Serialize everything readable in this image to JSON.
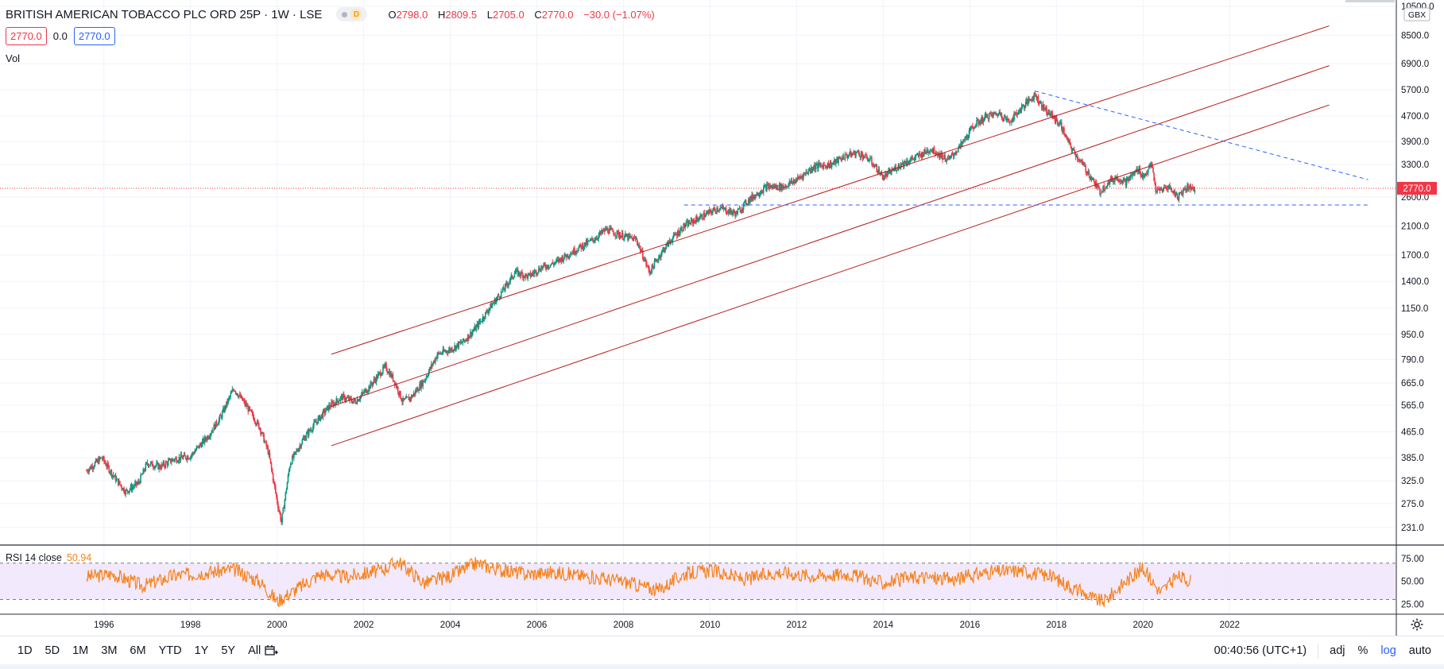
{
  "header": {
    "title": "BRITISH AMERICAN TOBACCO PLC ORD 25P · 1W · LSE",
    "badge_d": "D",
    "ohlc": {
      "o_label": "O",
      "o": "2798.0",
      "h_label": "H",
      "h": "2809.5",
      "l_label": "L",
      "l": "2705.0",
      "c_label": "C",
      "c": "2770.0",
      "change": "−30.0 (−1.07%)"
    },
    "bid": "2770.0",
    "spread": "0.0",
    "ask": "2770.0",
    "vol_label": "Vol"
  },
  "rsi": {
    "label": "RSI 14 close",
    "value": "50.94"
  },
  "toolbar": {
    "ranges": [
      "1D",
      "5D",
      "1M",
      "3M",
      "6M",
      "YTD",
      "1Y",
      "5Y",
      "All"
    ],
    "time": "00:40:56 (UTC+1)",
    "adj": "adj",
    "pct": "%",
    "log": "log",
    "auto": "auto"
  },
  "colors": {
    "down": "#f23645",
    "up": "#089981",
    "channel": "#b71c1c",
    "dashed": "#2962ff",
    "rsi": "#f7821b",
    "rsi_band": "#ede1fb",
    "last": "#f23645"
  },
  "chart_data": [
    {
      "type": "candlestick",
      "scale": "log",
      "currency": "GBX",
      "current_price": 2770.0,
      "current_price_label": "2770.0",
      "y_ticks": [
        231,
        275,
        325,
        385,
        465,
        565,
        665,
        790,
        950,
        1150,
        1400,
        1700,
        2100,
        2600,
        3300,
        3900,
        4700,
        5700,
        6900,
        8500,
        10500
      ],
      "y_tick_labels": [
        "231.0",
        "275.0",
        "325.0",
        "385.0",
        "465.0",
        "565.0",
        "665.0",
        "790.0",
        "950.0",
        "1150.0",
        "1400.0",
        "1700.0",
        "2100.0",
        "2600.0",
        "3300.0",
        "3900.0",
        "4700.0",
        "5700.0",
        "6900.0",
        "8500.0",
        "10500.0"
      ],
      "x_ticks": [
        "1996",
        "1998",
        "2000",
        "2002",
        "2004",
        "2006",
        "2008",
        "2010",
        "2012",
        "2014",
        "2016",
        "2018",
        "2020",
        "2022"
      ],
      "x_tick_values": [
        1996,
        1998,
        2000,
        2002,
        2004,
        2006,
        2008,
        2010,
        2012,
        2014,
        2016,
        2018,
        2020,
        2022
      ],
      "x_range": [
        1993.6,
        2025.85
      ],
      "y_range": [
        203,
        11000
      ],
      "series": [
        {
          "x": [
            1995.6,
            1995.95,
            1996.2,
            1996.5,
            1996.8,
            1997.0,
            1997.3,
            1997.6,
            1998.0,
            1998.4,
            1998.7,
            1999.0,
            1999.3,
            1999.6,
            1999.8,
            2000.0,
            2000.1,
            2000.3,
            2000.6,
            2000.9,
            2001.2,
            2001.5,
            2001.8,
            2002.1,
            2002.5,
            2002.7,
            2002.9,
            2003.1,
            2003.4,
            2003.7,
            2004.0,
            2004.3,
            2004.6,
            2004.9,
            2005.2,
            2005.5,
            2005.8,
            2006.1,
            2006.4,
            2006.7,
            2007.0,
            2007.3,
            2007.6,
            2008.0,
            2008.3,
            2008.6,
            2008.9,
            2009.1,
            2009.4,
            2009.8,
            2010.2,
            2010.6,
            2010.9,
            2011.3,
            2011.7,
            2012.0,
            2012.4,
            2012.8,
            2013.1,
            2013.4,
            2013.7,
            2014.0,
            2014.4,
            2014.8,
            2015.1,
            2015.5,
            2015.8,
            2016.1,
            2016.4,
            2016.7,
            2016.9,
            2017.2,
            2017.5,
            2017.7,
            2017.9,
            2018.1,
            2018.3,
            2018.6,
            2018.8,
            2019.0,
            2019.2,
            2019.4,
            2019.6,
            2019.9,
            2020.0,
            2020.2,
            2020.3,
            2020.6,
            2020.8,
            2021.0,
            2021.2
          ],
          "values": [
            350,
            385,
            340,
            300,
            320,
            370,
            360,
            380,
            390,
            450,
            520,
            640,
            560,
            480,
            400,
            280,
            240,
            370,
            440,
            500,
            560,
            600,
            580,
            640,
            750,
            680,
            580,
            600,
            680,
            820,
            850,
            900,
            1000,
            1150,
            1300,
            1500,
            1450,
            1550,
            1600,
            1700,
            1800,
            1900,
            2050,
            1950,
            1900,
            1500,
            1750,
            1900,
            2100,
            2250,
            2400,
            2300,
            2550,
            2800,
            2800,
            2950,
            3250,
            3300,
            3500,
            3600,
            3400,
            3000,
            3300,
            3500,
            3700,
            3400,
            3800,
            4400,
            4700,
            4800,
            4500,
            5000,
            5500,
            5000,
            4700,
            4400,
            3800,
            3300,
            3000,
            2700,
            2900,
            3000,
            2900,
            3200,
            3000,
            3300,
            2700,
            2800,
            2600,
            2800,
            2770
          ]
        }
      ],
      "channel_lines": [
        {
          "from": [
            2001.25,
            821
          ],
          "to": [
            2024.3,
            9100
          ]
        },
        {
          "from": [
            2001.25,
            560
          ],
          "to": [
            2024.3,
            6800
          ]
        },
        {
          "from": [
            2001.25,
            420
          ],
          "to": [
            2024.3,
            5100
          ]
        }
      ],
      "support_line": {
        "from": [
          2009.4,
          2450
        ],
        "to": [
          2025.2,
          2450
        ],
        "style": "dashed"
      },
      "resistance_line": {
        "from": [
          2017.5,
          5650
        ],
        "to": [
          2025.2,
          2950
        ],
        "style": "dashed"
      }
    },
    {
      "type": "line",
      "name": "RSI 14 close",
      "y_ticks": [
        25,
        50,
        75
      ],
      "y_tick_labels": [
        "25.00",
        "50.00",
        "75.00"
      ],
      "band": [
        30,
        70
      ],
      "last_value": 50.94,
      "x": [
        1995.6,
        1996.2,
        1996.9,
        1997.6,
        1998.4,
        1999.0,
        1999.6,
        2000.0,
        2000.4,
        2001.0,
        2001.6,
        2002.4,
        2002.8,
        2003.4,
        2004.0,
        2004.6,
        2005.2,
        2005.8,
        2006.4,
        2007.2,
        2008.0,
        2008.8,
        2009.4,
        2010.0,
        2010.8,
        2011.6,
        2012.4,
        2013.2,
        2014.0,
        2014.8,
        2015.6,
        2016.4,
        2017.2,
        2017.9,
        2018.5,
        2018.9,
        2019.1,
        2019.6,
        2020.0,
        2020.4,
        2020.8,
        2021.1
      ],
      "values": [
        55,
        58,
        45,
        56,
        60,
        63,
        50,
        28,
        40,
        58,
        55,
        62,
        72,
        48,
        56,
        70,
        62,
        58,
        60,
        55,
        50,
        40,
        58,
        62,
        52,
        60,
        56,
        58,
        48,
        55,
        52,
        60,
        62,
        55,
        40,
        30,
        28,
        50,
        64,
        38,
        55,
        51
      ]
    }
  ]
}
